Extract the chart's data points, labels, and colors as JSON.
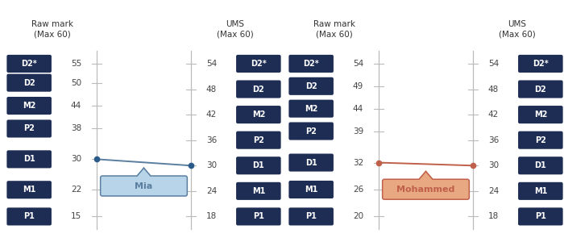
{
  "bg_color": "#ffffff",
  "dark_blue_btn": "#1e2d54",
  "mia_fill": "#b8d4e8",
  "mia_line": "#5a7fa0",
  "mia_dot": "#2a5a8a",
  "orange_fill": "#e8a882",
  "orange_line": "#c0604a",
  "grade_labels": [
    "D2*",
    "D2",
    "M2",
    "P2",
    "D1",
    "M1",
    "P1"
  ],
  "panels": [
    {
      "name": "Mia",
      "raw_vals": [
        55,
        50,
        44,
        38,
        30,
        22,
        15
      ],
      "ums_vals": [
        54,
        48,
        42,
        36,
        30,
        24,
        18
      ],
      "person_raw": 30,
      "person_ums": 30,
      "fill_color": "#b8d4e8",
      "line_color": "#5a7fa0",
      "dot_color": "#2a5a8a"
    },
    {
      "name": "Mohammed",
      "raw_vals": [
        54,
        49,
        44,
        39,
        32,
        26,
        20
      ],
      "ums_vals": [
        54,
        48,
        42,
        36,
        30,
        24,
        18
      ],
      "person_raw": 32,
      "person_ums": 30,
      "fill_color": "#e8a882",
      "line_color": "#c0604a",
      "dot_color": "#c0604a"
    }
  ],
  "title_raw": "Raw mark\n(Max 60)",
  "title_ums": "UMS\n(Max 60)",
  "axis_color": "#bbbbbb",
  "num_color": "#444444",
  "tick_lw": 0.8,
  "line_lw": 1.4
}
